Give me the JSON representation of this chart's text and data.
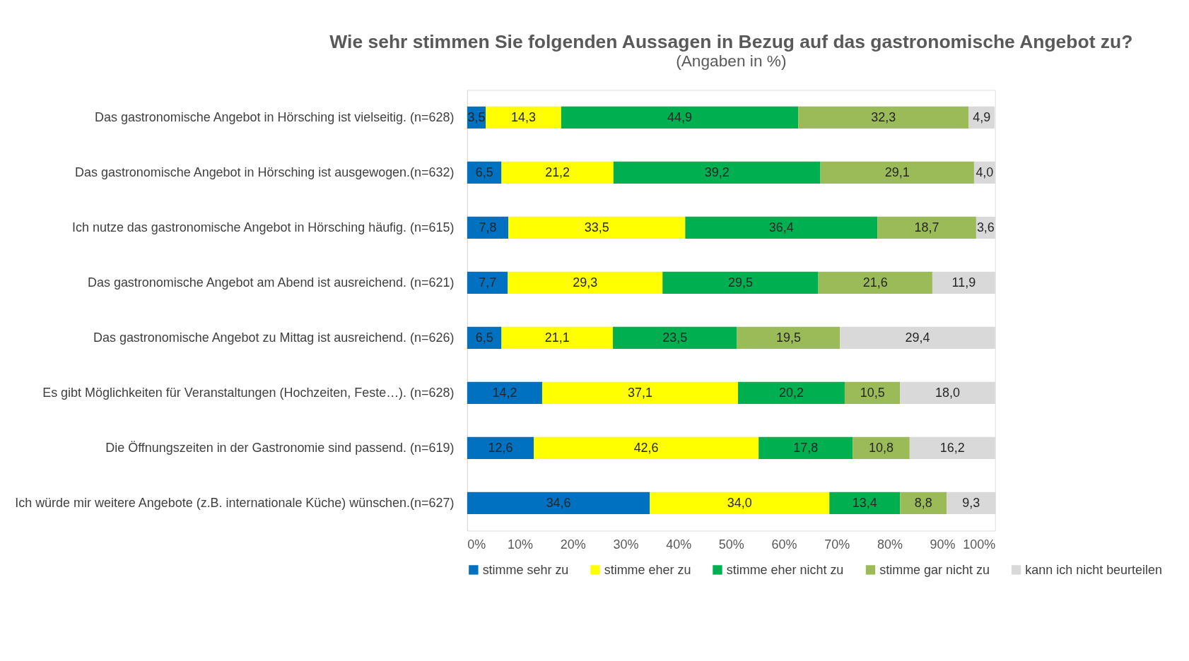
{
  "chart_data": {
    "type": "bar",
    "orientation": "horizontal",
    "stacked": true,
    "title": "Wie sehr stimmen Sie folgenden Aussagen in Bezug auf das gastronomische Angebot zu?",
    "subtitle": "(Angaben in %)",
    "categories": [
      "Das gastronomische Angebot in Hörsching ist vielseitig. (n=628)",
      "Das gastronomische Angebot in Hörsching ist ausgewogen.(n=632)",
      "Ich nutze das gastronomische Angebot in Hörsching häufig. (n=615)",
      "Das gastronomische Angebot am Abend ist ausreichend. (n=621)",
      "Das gastronomische Angebot zu Mittag ist ausreichend. (n=626)",
      "Es gibt Möglichkeiten für Veranstaltungen (Hochzeiten, Feste…). (n=628)",
      "Die Öffnungszeiten in der Gastronomie sind passend. (n=619)",
      "Ich würde mir weitere Angebote (z.B. internationale Küche) wünschen.(n=627)"
    ],
    "series": [
      {
        "name": "stimme sehr zu",
        "color": "#0070c0",
        "values": [
          3.5,
          6.5,
          7.8,
          7.7,
          6.5,
          14.2,
          12.6,
          34.6
        ],
        "value_labels": [
          "3,5",
          "6,5",
          "7,8",
          "7,7",
          "6,5",
          "14,2",
          "12,6",
          "34,6"
        ]
      },
      {
        "name": "stimme eher zu",
        "color": "#ffff00",
        "values": [
          14.3,
          21.2,
          33.5,
          29.3,
          21.1,
          37.1,
          42.6,
          34.0
        ],
        "value_labels": [
          "14,3",
          "21,2",
          "33,5",
          "29,3",
          "21,1",
          "37,1",
          "42,6",
          "34,0"
        ]
      },
      {
        "name": "stimme eher nicht zu",
        "color": "#00b050",
        "values": [
          44.9,
          39.2,
          36.4,
          29.5,
          23.5,
          20.2,
          17.8,
          13.4
        ],
        "value_labels": [
          "44,9",
          "39,2",
          "36,4",
          "29,5",
          "23,5",
          "20,2",
          "17,8",
          "13,4"
        ]
      },
      {
        "name": "stimme gar nicht zu",
        "color": "#9bbb59",
        "values": [
          32.3,
          29.1,
          18.7,
          21.6,
          19.5,
          10.5,
          10.8,
          8.8
        ],
        "value_labels": [
          "32,3",
          "29,1",
          "18,7",
          "21,6",
          "19,5",
          "10,5",
          "10,8",
          "8,8"
        ]
      },
      {
        "name": "kann ich nicht beurteilen",
        "color": "#d9d9d9",
        "values": [
          4.9,
          4.0,
          3.6,
          11.9,
          29.4,
          18.0,
          16.2,
          9.3
        ],
        "value_labels": [
          "4,9",
          "4,0",
          "3,6",
          "11,9",
          "29,4",
          "18,0",
          "16,2",
          "9,3"
        ]
      }
    ],
    "xlim": [
      0,
      100
    ],
    "xticks": [
      {
        "value": 0,
        "label": "0%"
      },
      {
        "value": 10,
        "label": "10%"
      },
      {
        "value": 20,
        "label": "20%"
      },
      {
        "value": 30,
        "label": "30%"
      },
      {
        "value": 40,
        "label": "40%"
      },
      {
        "value": 50,
        "label": "50%"
      },
      {
        "value": 60,
        "label": "60%"
      },
      {
        "value": 70,
        "label": "70%"
      },
      {
        "value": 80,
        "label": "80%"
      },
      {
        "value": 90,
        "label": "90%"
      },
      {
        "value": 100,
        "label": "100%"
      }
    ],
    "grid": false,
    "legend": "bottom"
  }
}
